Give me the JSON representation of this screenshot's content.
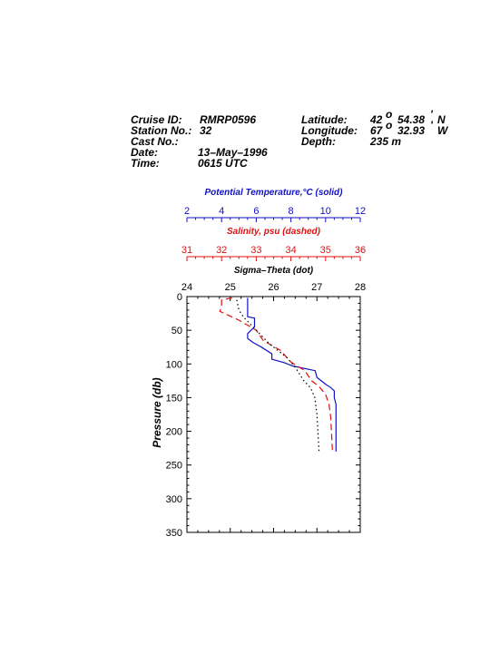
{
  "header": {
    "cruise_label": "Cruise ID:",
    "cruise_value": "RMRP0596",
    "station_label": "Station No.:",
    "station_value": "32",
    "cast_label": "Cast No.:",
    "cast_value": "",
    "date_label": "Date:",
    "date_value": "13–May–1996",
    "time_label": "Time:",
    "time_value": "0615 UTC",
    "lat_label": "Latitude:",
    "lat_deg": "42",
    "lat_min": "54.38",
    "lat_hem": "N",
    "lon_label": "Longitude:",
    "lon_deg": "67",
    "lon_min": "32.93",
    "lon_hem": "W",
    "depth_label": "Depth:",
    "depth_value": "235 m"
  },
  "colors": {
    "temperature": "#1010c8",
    "salinity": "#e01010",
    "sigma": "#000000"
  },
  "chart_data": {
    "type": "line",
    "ylabel": "Pressure (db)",
    "ylim": [
      0,
      350
    ],
    "y_reversed": true,
    "y_ticks": [
      "0",
      "50",
      "100",
      "150",
      "200",
      "250",
      "300",
      "350"
    ],
    "axes": [
      {
        "key": "temperature",
        "title": "Potential Temperature,°C (solid)",
        "range": [
          2,
          12
        ],
        "ticks": [
          "2",
          "4",
          "6",
          "8",
          "10",
          "12"
        ],
        "color": "#1010c8"
      },
      {
        "key": "salinity",
        "title": "Salinity, psu  (dashed)",
        "range": [
          31,
          36
        ],
        "ticks": [
          "31",
          "32",
          "33",
          "34",
          "35",
          "36"
        ],
        "color": "#e01010"
      },
      {
        "key": "sigma",
        "title": "Sigma–Theta (dot)",
        "range": [
          24,
          28
        ],
        "ticks": [
          "24",
          "25",
          "26",
          "27",
          "28"
        ],
        "color": "#000000"
      }
    ],
    "series": [
      {
        "key": "temperature",
        "style": "solid",
        "points": [
          [
            5.5,
            2
          ],
          [
            5.5,
            30
          ],
          [
            5.9,
            32
          ],
          [
            5.9,
            45
          ],
          [
            5.5,
            55
          ],
          [
            5.5,
            62
          ],
          [
            5.8,
            68
          ],
          [
            6.3,
            75
          ],
          [
            6.9,
            85
          ],
          [
            6.9,
            93
          ],
          [
            7.6,
            98
          ],
          [
            8.1,
            103
          ],
          [
            9.4,
            110
          ],
          [
            9.5,
            120
          ],
          [
            10.0,
            130
          ],
          [
            10.3,
            135
          ],
          [
            10.5,
            140
          ],
          [
            10.5,
            150
          ],
          [
            10.6,
            160
          ],
          [
            10.6,
            230
          ]
        ]
      },
      {
        "key": "salinity",
        "style": "dashed",
        "points": [
          [
            32.3,
            2
          ],
          [
            32.0,
            5
          ],
          [
            32.0,
            15
          ],
          [
            31.95,
            22
          ],
          [
            32.5,
            35
          ],
          [
            33.0,
            50
          ],
          [
            33.2,
            65
          ],
          [
            33.7,
            80
          ],
          [
            34.0,
            97
          ],
          [
            34.4,
            110
          ],
          [
            34.6,
            125
          ],
          [
            34.8,
            133
          ],
          [
            35.0,
            145
          ],
          [
            35.1,
            160
          ],
          [
            35.15,
            180
          ],
          [
            35.2,
            230
          ]
        ]
      },
      {
        "key": "sigma",
        "style": "dotted",
        "points": [
          [
            25.15,
            5
          ],
          [
            25.2,
            20
          ],
          [
            25.3,
            30
          ],
          [
            25.6,
            50
          ],
          [
            25.9,
            70
          ],
          [
            26.3,
            90
          ],
          [
            26.5,
            105
          ],
          [
            26.7,
            125
          ],
          [
            26.85,
            135
          ],
          [
            26.95,
            150
          ],
          [
            27.0,
            175
          ],
          [
            27.05,
            230
          ]
        ]
      }
    ]
  }
}
